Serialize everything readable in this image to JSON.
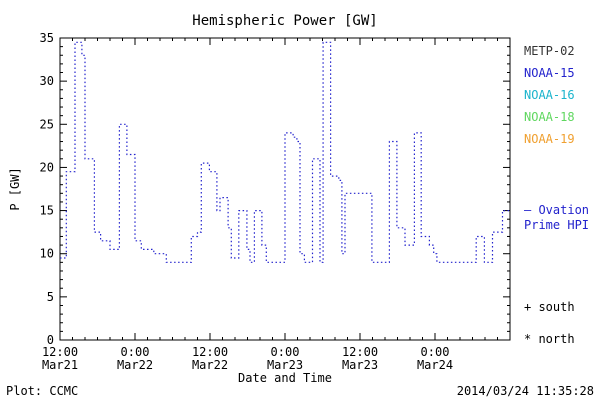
{
  "title": "Hemispheric Power [GW]",
  "axes": {
    "ylabel": "P [GW]",
    "xlabel": "Date and Time",
    "y_ticks": [
      0,
      5,
      10,
      15,
      20,
      25,
      30,
      35
    ],
    "x_ticks": [
      {
        "time": "12:00",
        "date": "Mar21"
      },
      {
        "time": "0:00",
        "date": "Mar22"
      },
      {
        "time": "12:00",
        "date": "Mar22"
      },
      {
        "time": "0:00",
        "date": "Mar23"
      },
      {
        "time": "12:00",
        "date": "Mar23"
      },
      {
        "time": "0:00",
        "date": "Mar24"
      }
    ]
  },
  "legend": {
    "satellites": [
      {
        "label": "METP-02",
        "color": "#333333"
      },
      {
        "label": "NOAA-15",
        "color": "#2323cd"
      },
      {
        "label": "NOAA-16",
        "color": "#1ab4cd"
      },
      {
        "label": "NOAA-18",
        "color": "#5fd75f"
      },
      {
        "label": "NOAA-19",
        "color": "#f0a030"
      }
    ],
    "series_line1": "— Ovation",
    "series_line2": "Prime HPI",
    "series_color": "#2323cd",
    "south_label": "+ south",
    "north_label": "* north"
  },
  "footer": {
    "left": "Plot: CCMC",
    "right": "2014/03/24 11:35:28"
  },
  "chart_data": {
    "type": "line",
    "style": "step-dotted",
    "title": "Hemispheric Power [GW]",
    "xlabel": "Date and Time",
    "ylabel": "P [GW]",
    "ylim": [
      0,
      35
    ],
    "xlim": [
      0,
      72
    ],
    "x_unit": "hours since 2014-03-21 12:00",
    "x_tick_hours": [
      0,
      12,
      24,
      36,
      48,
      60
    ],
    "x_minor_step": 2,
    "y_major_step": 5,
    "y_minor_step": 1,
    "grid": false,
    "legend_position": "right-outside",
    "series": [
      {
        "name": "Ovation Prime HPI",
        "color": "#2323cd",
        "points": [
          [
            0,
            9.5
          ],
          [
            1,
            19.5
          ],
          [
            2,
            19.5
          ],
          [
            2.4,
            34.5
          ],
          [
            3.1,
            34.5
          ],
          [
            3.5,
            33
          ],
          [
            4,
            21
          ],
          [
            5,
            21
          ],
          [
            5.5,
            12.5
          ],
          [
            6.5,
            11.5
          ],
          [
            7.5,
            11.5
          ],
          [
            8,
            10.5
          ],
          [
            9,
            10.5
          ],
          [
            9.5,
            25
          ],
          [
            10.2,
            25
          ],
          [
            10.7,
            21.5
          ],
          [
            11.5,
            21.5
          ],
          [
            12,
            11.5
          ],
          [
            13,
            10.5
          ],
          [
            14,
            10.5
          ],
          [
            15,
            10
          ],
          [
            16,
            10
          ],
          [
            17,
            9
          ],
          [
            19,
            9
          ],
          [
            21,
            12
          ],
          [
            22,
            12.5
          ],
          [
            22.6,
            20.5
          ],
          [
            23.4,
            20.5
          ],
          [
            23.9,
            19.5
          ],
          [
            24.6,
            19.5
          ],
          [
            25.1,
            15
          ],
          [
            25.6,
            16.5
          ],
          [
            26.3,
            16.5
          ],
          [
            26.9,
            13
          ],
          [
            27.4,
            9.5
          ],
          [
            28.1,
            9.5
          ],
          [
            28.6,
            15
          ],
          [
            29.3,
            15
          ],
          [
            29.9,
            10.5
          ],
          [
            30.4,
            9
          ],
          [
            31.1,
            15
          ],
          [
            31.8,
            15
          ],
          [
            32.3,
            11
          ],
          [
            33,
            9
          ],
          [
            35,
            9
          ],
          [
            36,
            24
          ],
          [
            36.8,
            24
          ],
          [
            37.3,
            23.5
          ],
          [
            37.9,
            23
          ],
          [
            38.4,
            10
          ],
          [
            39.1,
            9
          ],
          [
            40,
            9
          ],
          [
            40.4,
            21
          ],
          [
            41.1,
            21
          ],
          [
            41.6,
            9
          ],
          [
            42.1,
            34.5
          ],
          [
            42.9,
            34.5
          ],
          [
            43.3,
            19
          ],
          [
            44.1,
            19
          ],
          [
            44.6,
            18.5
          ],
          [
            45.1,
            10
          ],
          [
            45.6,
            17
          ],
          [
            47,
            17
          ],
          [
            49,
            17
          ],
          [
            49.9,
            9
          ],
          [
            52,
            9
          ],
          [
            52.7,
            23
          ],
          [
            53.4,
            23
          ],
          [
            53.9,
            13
          ],
          [
            54.7,
            13
          ],
          [
            55.2,
            11
          ],
          [
            56.1,
            11
          ],
          [
            56.7,
            24
          ],
          [
            57.3,
            24
          ],
          [
            57.8,
            12
          ],
          [
            58.6,
            12
          ],
          [
            59.1,
            11
          ],
          [
            59.8,
            10
          ],
          [
            60.3,
            9
          ],
          [
            63,
            9
          ],
          [
            66,
            9
          ],
          [
            66.6,
            12
          ],
          [
            67.4,
            12
          ],
          [
            67.9,
            9
          ],
          [
            68.7,
            9
          ],
          [
            69.2,
            12.5
          ],
          [
            70.2,
            12.5
          ],
          [
            70.8,
            15
          ],
          [
            72,
            15
          ]
        ]
      }
    ]
  }
}
